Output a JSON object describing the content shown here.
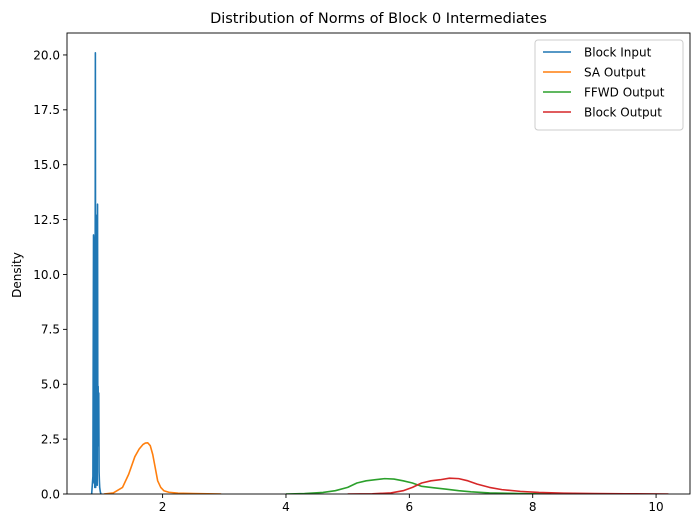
{
  "chart_data": {
    "type": "line",
    "title": "Distribution of Norms of Block 0 Intermediates",
    "xlabel": "",
    "ylabel": "Density",
    "xlim": [
      0.45,
      10.55
    ],
    "ylim": [
      0,
      21.0
    ],
    "xticks": [
      2,
      4,
      6,
      8,
      10
    ],
    "xtick_labels": [
      "2",
      "4",
      "6",
      "8",
      "10"
    ],
    "yticks": [
      0.0,
      2.5,
      5.0,
      7.5,
      10.0,
      12.5,
      15.0,
      17.5,
      20.0
    ],
    "ytick_labels": [
      "0.0",
      "2.5",
      "5.0",
      "7.5",
      "10.0",
      "12.5",
      "15.0",
      "17.5",
      "20.0"
    ],
    "grid": false,
    "legend_position": "top-right",
    "series": [
      {
        "name": "Block Input",
        "color": "#1f77b4",
        "x": [
          0.85,
          0.87,
          0.88,
          0.89,
          0.895,
          0.9,
          0.905,
          0.91,
          0.915,
          0.92,
          0.925,
          0.93,
          0.935,
          0.94,
          0.945,
          0.95,
          0.955,
          0.96,
          0.965,
          0.97,
          0.975,
          0.98,
          0.99,
          1.0
        ],
        "y": [
          0.0,
          0.8,
          11.8,
          0.5,
          11.7,
          0.3,
          5.0,
          20.1,
          0.3,
          6.2,
          10.8,
          1.4,
          12.7,
          0.4,
          13.2,
          2.2,
          4.9,
          2.3,
          4.6,
          1.0,
          0.6,
          0.3,
          0.1,
          0.0
        ]
      },
      {
        "name": "SA Output",
        "color": "#ff7f0e",
        "x": [
          1.05,
          1.2,
          1.35,
          1.45,
          1.55,
          1.62,
          1.68,
          1.72,
          1.76,
          1.8,
          1.84,
          1.88,
          1.92,
          1.97,
          2.02,
          2.1,
          2.25,
          2.5,
          2.95
        ],
        "y": [
          0.0,
          0.05,
          0.3,
          0.9,
          1.7,
          2.05,
          2.25,
          2.32,
          2.33,
          2.2,
          1.8,
          1.2,
          0.6,
          0.3,
          0.15,
          0.08,
          0.04,
          0.02,
          0.0
        ]
      },
      {
        "name": "FFWD Output",
        "color": "#2ca02c",
        "x": [
          4.0,
          4.3,
          4.6,
          4.8,
          5.0,
          5.15,
          5.3,
          5.45,
          5.6,
          5.75,
          5.9,
          6.05,
          6.2,
          6.4,
          6.6,
          6.8,
          7.0,
          7.3,
          7.6,
          8.0,
          8.3
        ],
        "y": [
          0.0,
          0.02,
          0.07,
          0.15,
          0.3,
          0.5,
          0.6,
          0.65,
          0.7,
          0.68,
          0.6,
          0.5,
          0.35,
          0.28,
          0.22,
          0.15,
          0.1,
          0.05,
          0.03,
          0.01,
          0.0
        ]
      },
      {
        "name": "Block Output",
        "color": "#d62728",
        "x": [
          5.0,
          5.4,
          5.7,
          5.9,
          6.05,
          6.2,
          6.35,
          6.5,
          6.65,
          6.8,
          6.95,
          7.1,
          7.3,
          7.5,
          7.8,
          8.1,
          8.5,
          9.0,
          9.5,
          10.2
        ],
        "y": [
          0.0,
          0.01,
          0.05,
          0.15,
          0.3,
          0.5,
          0.6,
          0.65,
          0.72,
          0.7,
          0.6,
          0.45,
          0.3,
          0.2,
          0.12,
          0.07,
          0.04,
          0.02,
          0.01,
          0.0
        ]
      }
    ]
  }
}
